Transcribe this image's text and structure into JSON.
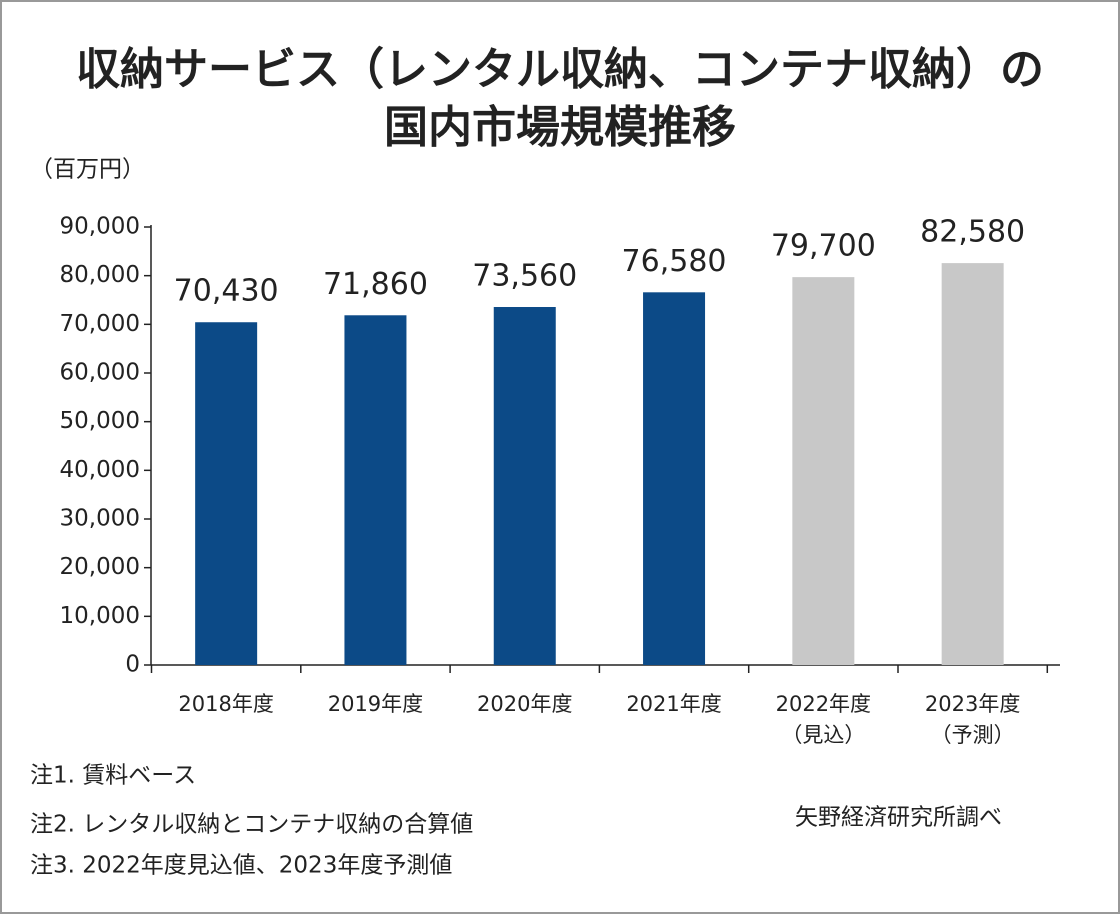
{
  "chart_data": {
    "type": "bar",
    "title": [
      "収納サービス（レンタル収納、コンテナ収納）の",
      "国内市場規模推移"
    ],
    "y_label": "（百万円）",
    "categories": [
      [
        "2018年度"
      ],
      [
        "2019年度"
      ],
      [
        "2020年度"
      ],
      [
        "2021年度"
      ],
      [
        "2022年度",
        "（見込）"
      ],
      [
        "2023年度",
        "（予測）"
      ]
    ],
    "values": [
      70430,
      71860,
      73560,
      76580,
      79700,
      82580
    ],
    "value_labels": [
      "70,430",
      "71,860",
      "73,560",
      "76,580",
      "79,700",
      "82,580"
    ],
    "colors": [
      "#0c4a87",
      "#0c4a87",
      "#0c4a87",
      "#0c4a87",
      "#c8c8c8",
      "#c8c8c8"
    ],
    "ylim": [
      0,
      90000
    ],
    "yticks": [
      0,
      {
        "value": 10000,
        "label": "10,000"
      },
      {
        "value": 20000,
        "label": "20,000"
      },
      {
        "value": 30000,
        "label": "30,000"
      },
      {
        "value": 40000,
        "label": "40,000"
      },
      {
        "value": 50000,
        "label": "50,000"
      },
      {
        "value": 60000,
        "label": "60,000"
      },
      {
        "value": 70000,
        "label": "70,000"
      },
      {
        "value": 80000,
        "label": "80,000"
      },
      {
        "value": 90000,
        "label": "90,000"
      }
    ],
    "notes": [
      "注1. 賃料ベース",
      "注2. レンタル収納とコンテナ収納の合算値",
      "注3. 2022年度見込値、2023年度予測値"
    ],
    "source": "矢野経済研究所調べ"
  }
}
